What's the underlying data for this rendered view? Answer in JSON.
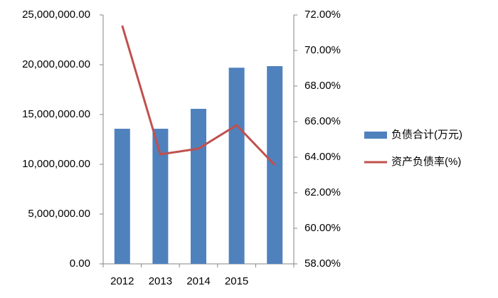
{
  "chart_data": {
    "type": "bar",
    "categories": [
      "2012",
      "2013",
      "2014",
      "2015",
      null
    ],
    "series": [
      {
        "name": "负债合计(万元)",
        "color": "#4f81bd",
        "type": "bar",
        "values": [
          13570000,
          13570000,
          15570000,
          19700000,
          19860000
        ]
      },
      {
        "name": "资产负债率(%)",
        "color": "#c0504d",
        "type": "line",
        "axis": "y2",
        "values": [
          71.4,
          64.16,
          64.48,
          65.8,
          63.56
        ]
      }
    ],
    "ylim": [
      0,
      25000000
    ],
    "yticks": [
      {
        "value": 0,
        "label": "0.00"
      },
      {
        "value": 5000000,
        "label": "5,000,000.00"
      },
      {
        "value": 10000000,
        "label": "10,000,000.00"
      },
      {
        "value": 15000000,
        "label": "15,000,000.00"
      },
      {
        "value": 20000000,
        "label": "20,000,000.00"
      },
      {
        "value": 25000000,
        "label": "25,000,000.00"
      }
    ],
    "y2lim": [
      58,
      72
    ],
    "y2ticks": [
      {
        "value": 58,
        "label": "58.00%"
      },
      {
        "value": 60,
        "label": "60.00%"
      },
      {
        "value": 62,
        "label": "62.00%"
      },
      {
        "value": 64,
        "label": "64.00%"
      },
      {
        "value": 66,
        "label": "66.00%"
      },
      {
        "value": 68,
        "label": "68.00%"
      },
      {
        "value": 70,
        "label": "70.00%"
      },
      {
        "value": 72,
        "label": "72.00%"
      }
    ],
    "grid": false,
    "legend": "right"
  }
}
